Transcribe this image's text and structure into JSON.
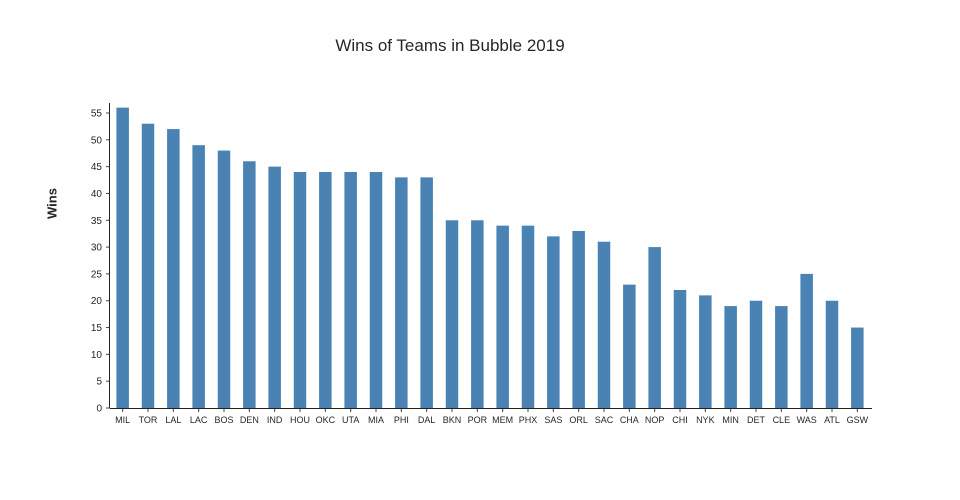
{
  "chart_data": {
    "type": "bar",
    "title": "Wins of Teams in Bubble 2019",
    "xlabel": "",
    "ylabel": "Wins",
    "categories": [
      "MIL",
      "TOR",
      "LAL",
      "LAC",
      "BOS",
      "DEN",
      "IND",
      "HOU",
      "OKC",
      "UTA",
      "MIA",
      "PHI",
      "DAL",
      "BKN",
      "POR",
      "MEM",
      "PHX",
      "SAS",
      "ORL",
      "SAC",
      "CHA",
      "NOP",
      "CHI",
      "NYK",
      "MIN",
      "DET",
      "CLE",
      "WAS",
      "ATL",
      "GSW"
    ],
    "values": [
      56,
      53,
      52,
      49,
      48,
      46,
      45,
      44,
      44,
      44,
      44,
      43,
      43,
      35,
      35,
      34,
      34,
      32,
      33,
      31,
      23,
      30,
      22,
      21,
      19,
      20,
      19,
      25,
      20,
      15
    ],
    "y_ticks": [
      0,
      5,
      10,
      15,
      20,
      25,
      30,
      35,
      40,
      45,
      50,
      55
    ],
    "ylim": [
      0,
      58
    ],
    "grid": false,
    "legend": false
  },
  "colors": {
    "bar": "#4a82b4",
    "axis": "#444444",
    "text": "#262626"
  }
}
